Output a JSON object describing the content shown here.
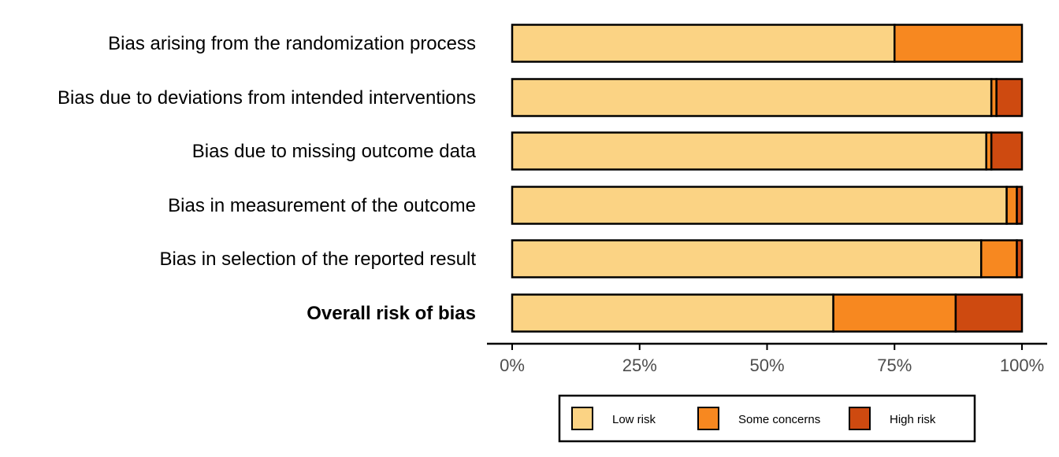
{
  "chart_data": {
    "type": "bar",
    "orientation": "horizontal",
    "stacked": true,
    "categories": [
      "Bias arising from the randomization process",
      "Bias due to deviations from intended interventions",
      "Bias due to missing outcome data",
      "Bias in measurement of the outcome",
      "Bias in selection of the reported result",
      "Overall risk of bias"
    ],
    "bold_categories": [
      "Overall risk of bias"
    ],
    "series": [
      {
        "name": "Low risk",
        "color": "#FBD384",
        "values": [
          75,
          94,
          93,
          97,
          92,
          63
        ]
      },
      {
        "name": "Some concerns",
        "color": "#F78820",
        "values": [
          25,
          1,
          1,
          2,
          7,
          24
        ]
      },
      {
        "name": "High risk",
        "color": "#CE4A10",
        "values": [
          0,
          5,
          6,
          1,
          1,
          13
        ]
      }
    ],
    "xlim": [
      0,
      100
    ],
    "x_ticks": [
      0,
      25,
      50,
      75,
      100
    ],
    "x_tick_labels": [
      "0%",
      "25%",
      "50%",
      "75%",
      "100%"
    ],
    "title": "",
    "xlabel": "",
    "ylabel": "",
    "grid": false,
    "legend_position": "bottom"
  }
}
